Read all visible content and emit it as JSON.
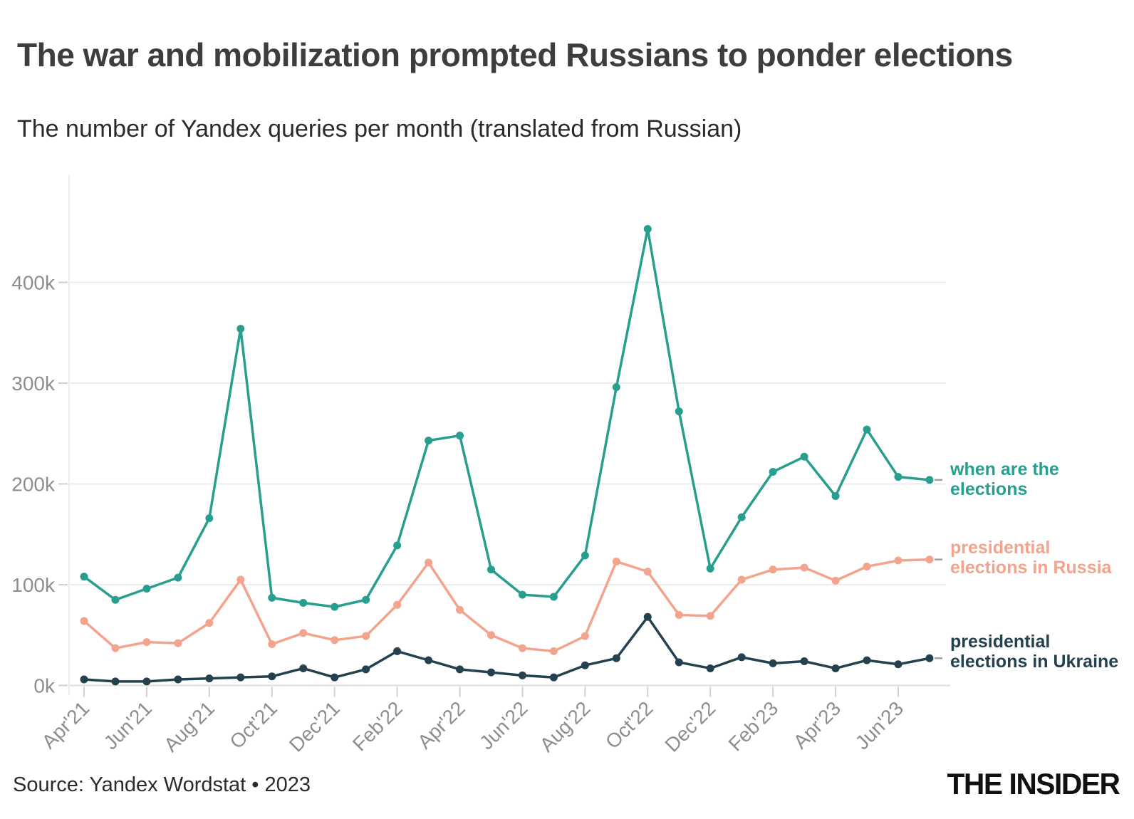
{
  "header": {
    "title": "The war and mobilization prompted Russians to ponder elections",
    "subtitle": "The number of Yandex queries per month (translated from Russian)"
  },
  "footer": {
    "source": "Source: Yandex Wordstat • 2023",
    "logo": "THE INSIDER"
  },
  "chart_data": {
    "type": "line",
    "title": "The war and mobilization prompted Russians to ponder elections",
    "subtitle": "The number of Yandex queries per month (translated from Russian)",
    "unit": "thousands of queries per month",
    "grid": "horizontal",
    "legend_position": "right-of-line-ends",
    "ylim_k": [
      0,
      470
    ],
    "y_tick_labels": [
      "0k",
      "100k",
      "200k",
      "300k",
      "400k"
    ],
    "x": [
      "Apr'21",
      "May'21",
      "Jun'21",
      "Jul'21",
      "Aug'21",
      "Sep'21",
      "Oct'21",
      "Nov'21",
      "Dec'21",
      "Jan'22",
      "Feb'22",
      "Mar'22",
      "Apr'22",
      "May'22",
      "Jun'22",
      "Jul'22",
      "Aug'22",
      "Sep'22",
      "Oct'22",
      "Nov'22",
      "Dec'22",
      "Jan'23",
      "Feb'23",
      "Mar'23",
      "Apr'23",
      "May'23",
      "Jun'23",
      "Jul'23"
    ],
    "x_tick_labels": [
      "Apr'21",
      "Jun'21",
      "Aug'21",
      "Oct'21",
      "Dec'21",
      "Feb'22",
      "Apr'22",
      "Jun'22",
      "Aug'22",
      "Oct'22",
      "Dec'22",
      "Feb'23",
      "Apr'23",
      "Jun'23"
    ],
    "series": [
      {
        "name": "when are the elections",
        "label_lines": [
          "when are the",
          "elections"
        ],
        "color": "#279e8e",
        "values_k": [
          108,
          85,
          96,
          107,
          166,
          354,
          87,
          82,
          78,
          85,
          139,
          243,
          248,
          115,
          90,
          88,
          129,
          296,
          453,
          272,
          116,
          167,
          212,
          227,
          188,
          254,
          207,
          204
        ]
      },
      {
        "name": "presidential elections in Russia",
        "label_lines": [
          "presidential",
          "elections in Russia"
        ],
        "color": "#f2a48c",
        "values_k": [
          64,
          37,
          43,
          42,
          62,
          105,
          41,
          52,
          45,
          49,
          80,
          122,
          75,
          50,
          37,
          34,
          49,
          123,
          113,
          70,
          69,
          105,
          115,
          117,
          104,
          118,
          124,
          125
        ]
      },
      {
        "name": "presidential elections in Ukraine",
        "label_lines": [
          "presidential",
          "elections in Ukraine"
        ],
        "color": "#24414f",
        "values_k": [
          6,
          4,
          4,
          6,
          7,
          8,
          9,
          17,
          8,
          16,
          34,
          25,
          16,
          13,
          10,
          8,
          20,
          27,
          68,
          23,
          17,
          28,
          22,
          24,
          17,
          25,
          21,
          27
        ]
      }
    ],
    "style": {
      "grid_color": "#ededed",
      "axis_color": "#dddddd",
      "tick_color": "#d0d0d0",
      "axis_text_color": "#8e8e8e",
      "legend_dash_color": "#a0a0a0"
    }
  }
}
